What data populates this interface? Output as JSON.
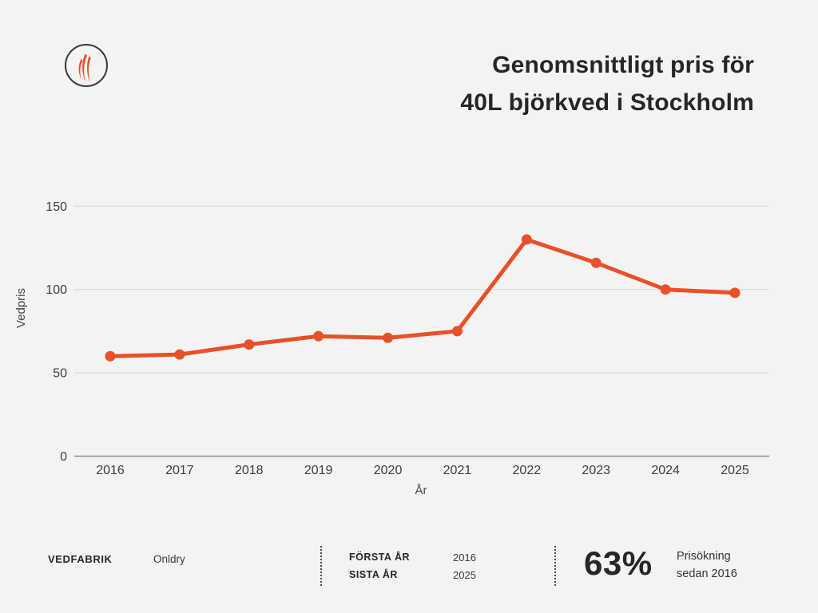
{
  "header": {
    "title_line1": "Genomsnittligt pris för",
    "title_line2": "40L björkved i Stockholm"
  },
  "logo": {
    "icon": "flame-icon"
  },
  "chart_data": {
    "type": "line",
    "title": "Genomsnittligt pris för 40L björkved i Stockholm",
    "x": [
      "2016",
      "2017",
      "2018",
      "2019",
      "2020",
      "2021",
      "2022",
      "2023",
      "2024",
      "2025"
    ],
    "values": [
      60,
      61,
      67,
      72,
      71,
      75,
      130,
      116,
      100,
      98
    ],
    "xlabel": "År",
    "ylabel": "Vedpris",
    "yticks": [
      0,
      50,
      100,
      150
    ],
    "ylim": [
      0,
      150
    ],
    "grid": true,
    "legend_position": "none",
    "line_color": "#e8502a",
    "marker": "circle"
  },
  "footer": {
    "brand": "VEDFABRIK",
    "brand_value": "Onldry",
    "stats": [
      {
        "label": "FÖRSTA ÅR",
        "value": "2016"
      },
      {
        "label": "SISTA ÅR",
        "value": "2025"
      }
    ],
    "highlight_value": "63%",
    "highlight_label_line1": "Prisökning",
    "highlight_label_line2": "sedan 2016"
  },
  "colors": {
    "background": "#f4f3f2",
    "accent": "#e8502a",
    "text_dark": "#262626",
    "tick_text": "#3d3d3d",
    "grid": "#d9d9d9",
    "axis": "#8c8c8c",
    "logo_ring": "#3a3a3a"
  }
}
